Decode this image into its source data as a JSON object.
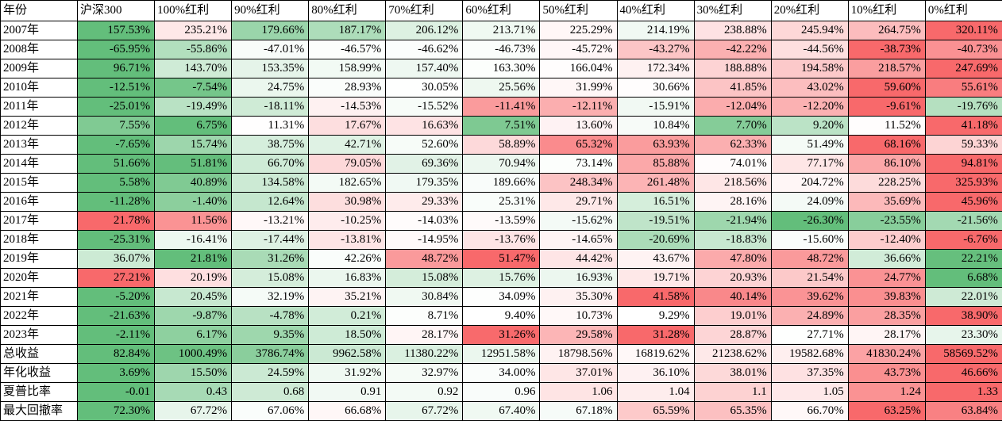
{
  "table": {
    "columns": [
      "年份",
      "沪深300",
      "100%红利",
      "90%红利",
      "80%红利",
      "70%红利",
      "60%红利",
      "50%红利",
      "40%红利",
      "30%红利",
      "20%红利",
      "10%红利",
      "0%红利"
    ],
    "color_scale": {
      "low": "#63be7b",
      "mid": "#ffffff",
      "high": "#f8696b"
    },
    "rows": [
      {
        "label": "2007年",
        "cells": [
          "157.53%",
          "235.21%",
          "179.66%",
          "187.17%",
          "206.12%",
          "213.71%",
          "225.29%",
          "214.19%",
          "238.88%",
          "245.94%",
          "264.75%",
          "320.11%"
        ]
      },
      {
        "label": "2008年",
        "cells": [
          "-65.95%",
          "-55.86%",
          "-47.01%",
          "-46.57%",
          "-46.62%",
          "-46.73%",
          "-45.72%",
          "-43.27%",
          "-42.22%",
          "-44.56%",
          "-38.73%",
          "-40.73%"
        ]
      },
      {
        "label": "2009年",
        "cells": [
          "96.71%",
          "143.70%",
          "153.35%",
          "158.99%",
          "157.40%",
          "163.30%",
          "166.04%",
          "172.34%",
          "188.88%",
          "194.58%",
          "218.57%",
          "247.69%"
        ]
      },
      {
        "label": "2010年",
        "cells": [
          "-12.51%",
          "-7.54%",
          "24.75%",
          "28.93%",
          "30.05%",
          "25.56%",
          "31.99%",
          "30.66%",
          "41.85%",
          "43.02%",
          "59.60%",
          "55.61%"
        ]
      },
      {
        "label": "2011年",
        "cells": [
          "-25.01%",
          "-19.49%",
          "-18.11%",
          "-14.53%",
          "-15.52%",
          "-11.41%",
          "-12.11%",
          "-15.91%",
          "-12.04%",
          "-12.20%",
          "-9.61%",
          "-19.76%"
        ]
      },
      {
        "label": "2012年",
        "cells": [
          "7.55%",
          "6.75%",
          "11.31%",
          "17.67%",
          "16.63%",
          "7.51%",
          "13.60%",
          "10.84%",
          "7.70%",
          "9.20%",
          "11.52%",
          "41.18%"
        ]
      },
      {
        "label": "2013年",
        "cells": [
          "-7.65%",
          "15.74%",
          "38.75%",
          "42.71%",
          "52.60%",
          "58.89%",
          "65.32%",
          "63.93%",
          "62.33%",
          "51.49%",
          "68.16%",
          "59.33%"
        ]
      },
      {
        "label": "2014年",
        "cells": [
          "51.66%",
          "51.81%",
          "66.70%",
          "79.05%",
          "69.36%",
          "70.94%",
          "73.14%",
          "85.88%",
          "74.01%",
          "77.17%",
          "86.10%",
          "94.81%"
        ]
      },
      {
        "label": "2015年",
        "cells": [
          "5.58%",
          "40.89%",
          "134.58%",
          "182.65%",
          "179.35%",
          "189.66%",
          "248.34%",
          "261.48%",
          "218.56%",
          "204.72%",
          "228.25%",
          "325.93%"
        ]
      },
      {
        "label": "2016年",
        "cells": [
          "-11.28%",
          "-1.40%",
          "12.64%",
          "30.98%",
          "29.33%",
          "25.31%",
          "29.71%",
          "16.51%",
          "28.16%",
          "24.09%",
          "35.69%",
          "45.96%"
        ]
      },
      {
        "label": "2017年",
        "cells": [
          "21.78%",
          "11.56%",
          "-13.21%",
          "-10.25%",
          "-14.03%",
          "-13.59%",
          "-15.62%",
          "-19.51%",
          "-21.94%",
          "-26.30%",
          "-23.55%",
          "-21.56%"
        ]
      },
      {
        "label": "2018年",
        "cells": [
          "-25.31%",
          "-16.41%",
          "-17.44%",
          "-13.81%",
          "-14.95%",
          "-13.76%",
          "-14.65%",
          "-20.69%",
          "-18.83%",
          "-15.60%",
          "-12.40%",
          "-6.76%"
        ]
      },
      {
        "label": "2019年",
        "cells": [
          "36.07%",
          "21.81%",
          "31.26%",
          "42.26%",
          "48.72%",
          "51.47%",
          "44.42%",
          "43.67%",
          "47.80%",
          "48.72%",
          "36.66%",
          "22.21%"
        ]
      },
      {
        "label": "2020年",
        "cells": [
          "27.21%",
          "20.19%",
          "15.08%",
          "16.83%",
          "15.08%",
          "15.76%",
          "16.93%",
          "19.71%",
          "20.93%",
          "21.54%",
          "24.77%",
          "6.68%"
        ]
      },
      {
        "label": "2021年",
        "cells": [
          "-5.20%",
          "20.45%",
          "32.19%",
          "35.21%",
          "30.84%",
          "34.09%",
          "35.30%",
          "41.58%",
          "40.14%",
          "39.62%",
          "39.83%",
          "22.01%"
        ]
      },
      {
        "label": "2022年",
        "cells": [
          "-21.63%",
          "-9.87%",
          "-4.78%",
          "0.21%",
          "8.71%",
          "9.40%",
          "10.73%",
          "9.29%",
          "19.01%",
          "24.89%",
          "28.35%",
          "38.90%"
        ]
      },
      {
        "label": "2023年",
        "cells": [
          "-2.11%",
          "6.17%",
          "9.35%",
          "18.50%",
          "28.17%",
          "31.26%",
          "29.58%",
          "31.28%",
          "28.87%",
          "27.71%",
          "28.17%",
          "23.30%"
        ]
      },
      {
        "label": "总收益",
        "cells": [
          "82.84%",
          "1000.49%",
          "3786.74%",
          "9962.58%",
          "11380.22%",
          "12951.58%",
          "18798.56%",
          "16819.62%",
          "21238.62%",
          "19582.68%",
          "41830.24%",
          "58569.52%"
        ]
      },
      {
        "label": "年化收益",
        "cells": [
          "3.69%",
          "15.50%",
          "24.59%",
          "31.92%",
          "32.97%",
          "34.00%",
          "37.01%",
          "36.10%",
          "38.01%",
          "37.35%",
          "43.73%",
          "46.66%"
        ]
      },
      {
        "label": "夏普比率",
        "cells": [
          "-0.01",
          "0.43",
          "0.68",
          "0.91",
          "0.92",
          "0.96",
          "1.06",
          "1.04",
          "1.1",
          "1.05",
          "1.24",
          "1.33"
        ]
      },
      {
        "label": "最大回撤率",
        "cells": [
          "72.30%",
          "67.72%",
          "67.06%",
          "66.68%",
          "67.72%",
          "67.40%",
          "67.18%",
          "65.59%",
          "65.35%",
          "66.70%",
          "63.25%",
          "63.84%"
        ],
        "invert_scale": true
      }
    ]
  }
}
